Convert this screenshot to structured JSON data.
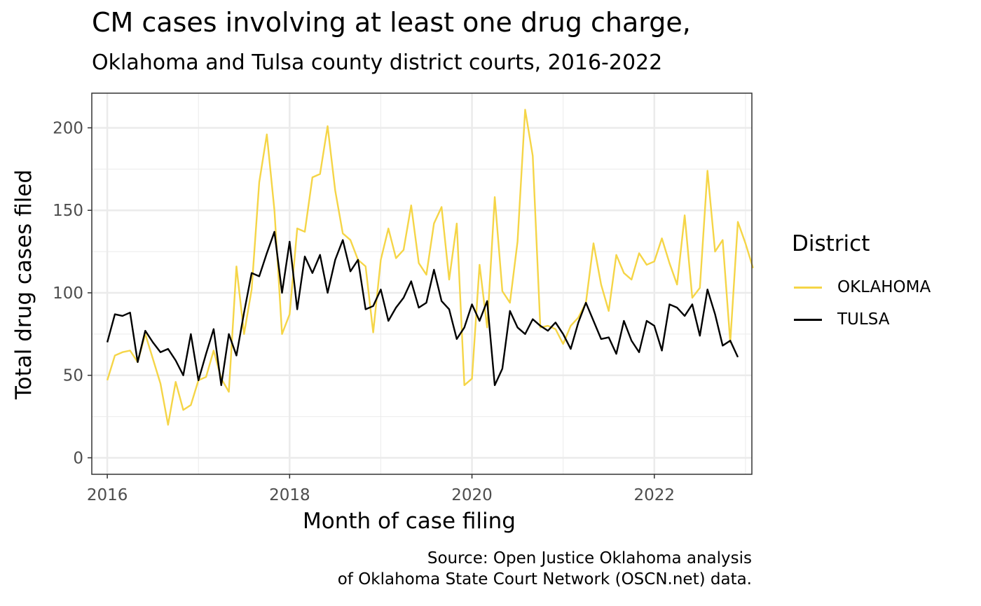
{
  "colors": {
    "OKLAHOMA": "#f5d547",
    "TULSA": "#000000",
    "grid": "#ebebeb",
    "panel_border": "#333333",
    "tick_text": "#4d4d4d"
  },
  "chart_data": {
    "type": "line",
    "title": "CM cases involving at least one drug charge,",
    "subtitle": "Oklahoma and Tulsa county district courts, 2016-2022",
    "xlabel": "Month of case filing",
    "ylabel": "Total drug cases filed",
    "caption": [
      "Source: Open Justice Oklahoma analysis",
      "of Oklahoma State Court Network (OSCN.net) data."
    ],
    "legend_title": "District",
    "legend_position": "right",
    "grid": true,
    "xlim": [
      2015.83,
      2023.07
    ],
    "ylim": [
      -10,
      221
    ],
    "x_ticks": [
      2016,
      2018,
      2020,
      2022
    ],
    "x_tick_labels": [
      "2016",
      "2018",
      "2020",
      "2022"
    ],
    "y_ticks": [
      0,
      50,
      100,
      150,
      200
    ],
    "y_tick_labels": [
      "0",
      "50",
      "100",
      "150",
      "200"
    ],
    "x_start": 2016,
    "x_step": 0.08333,
    "series": [
      {
        "name": "OKLAHOMA",
        "values": [
          47,
          62,
          64,
          65,
          58,
          75,
          60,
          45,
          20,
          46,
          29,
          32,
          47,
          49,
          65,
          48,
          40,
          116,
          75,
          102,
          167,
          196,
          150,
          75,
          87,
          139,
          137,
          170,
          172,
          201,
          162,
          136,
          132,
          120,
          116,
          76,
          120,
          139,
          121,
          126,
          153,
          118,
          111,
          142,
          152,
          108,
          142,
          44,
          48,
          117,
          79,
          158,
          101,
          94,
          131,
          211,
          183,
          79,
          80,
          78,
          69,
          80,
          85,
          94,
          130,
          105,
          89,
          123,
          112,
          108,
          124,
          117,
          119,
          133,
          118,
          105,
          147,
          97,
          103,
          174,
          125,
          132,
          70,
          143,
          130,
          115
        ]
      },
      {
        "name": "TULSA",
        "values": [
          70,
          87,
          86,
          88,
          58,
          77,
          70,
          64,
          66,
          59,
          50,
          75,
          47,
          63,
          78,
          44,
          75,
          62,
          88,
          112,
          110,
          124,
          137,
          100,
          131,
          90,
          122,
          112,
          123,
          100,
          120,
          132,
          113,
          120,
          90,
          92,
          102,
          83,
          91,
          97,
          107,
          91,
          94,
          114,
          95,
          90,
          72,
          79,
          93,
          83,
          95,
          44,
          54,
          89,
          79,
          75,
          84,
          80,
          77,
          82,
          75,
          66,
          82,
          94,
          83,
          72,
          73,
          63,
          83,
          71,
          64,
          83,
          80,
          65,
          93,
          91,
          86,
          93,
          74,
          102,
          87,
          68,
          71,
          61
        ]
      }
    ]
  }
}
